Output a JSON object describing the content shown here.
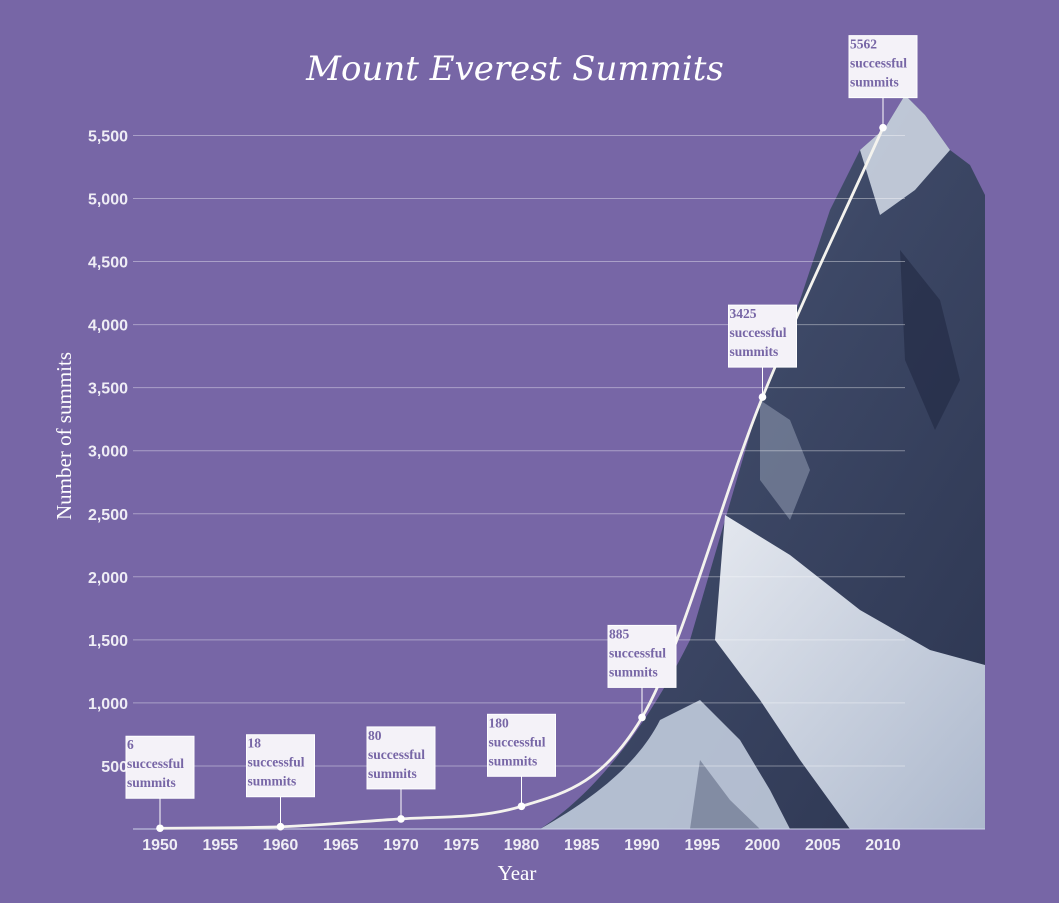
{
  "colors": {
    "background": "#7766a6",
    "line": "#f4f3ee",
    "label_text": "#7766a6",
    "label_box": "#f4f2f8"
  },
  "chart_data": {
    "type": "line",
    "title": "Mount Everest Summits",
    "xlabel": "Year",
    "ylabel": "Number of summits",
    "xlim": [
      1950,
      2018
    ],
    "ylim": [
      0,
      5750
    ],
    "x_ticks": [
      1950,
      1955,
      1960,
      1965,
      1970,
      1975,
      1980,
      1985,
      1990,
      1995,
      2000,
      2005,
      2010
    ],
    "y_ticks": [
      500,
      1000,
      1500,
      2000,
      2500,
      3000,
      3500,
      4000,
      4500,
      5000,
      5500
    ],
    "y_tick_labels": [
      "500",
      "1,000",
      "1,500",
      "2,000",
      "2,500",
      "3,000",
      "3,500",
      "4,000",
      "4,500",
      "5,000",
      "5,500"
    ],
    "grid": true,
    "legend": "none",
    "background_image": "mountain-photo",
    "series": [
      {
        "x": [
          1950,
          1960,
          1970,
          1980,
          1990,
          2000,
          2010
        ],
        "values": [
          6,
          18,
          80,
          180,
          885,
          3425,
          5562
        ]
      }
    ],
    "annotations": [
      {
        "x": 1950,
        "y": 6,
        "lines": [
          "6",
          "successful",
          "summits"
        ]
      },
      {
        "x": 1960,
        "y": 18,
        "lines": [
          "18",
          "successful",
          "summits"
        ]
      },
      {
        "x": 1970,
        "y": 80,
        "lines": [
          "80",
          "successful",
          "summits"
        ]
      },
      {
        "x": 1980,
        "y": 180,
        "lines": [
          "180",
          "successful",
          "summits"
        ]
      },
      {
        "x": 1990,
        "y": 885,
        "lines": [
          "885",
          "successful",
          "summits"
        ]
      },
      {
        "x": 2000,
        "y": 3425,
        "lines": [
          "3425",
          "successful",
          "summits"
        ]
      },
      {
        "x": 2010,
        "y": 5562,
        "lines": [
          "5562",
          "successful",
          "summits"
        ]
      }
    ]
  }
}
